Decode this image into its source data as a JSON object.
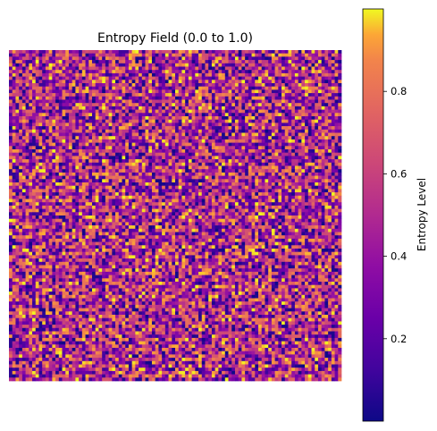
{
  "chart_data": {
    "type": "heatmap",
    "title": "Entropy Field (0.0 to 1.0)",
    "grid_rows": 100,
    "grid_cols": 100,
    "value_range": [
      0.0,
      1.0
    ],
    "colormap": "plasma",
    "axes_visible": false,
    "values_note": "",
    "colorbar": {
      "label": "Entropy Level",
      "range": [
        0.0,
        1.0
      ],
      "ticks": [
        0.2,
        0.4,
        0.6,
        0.8
      ],
      "tick_labels": [
        "0.2",
        "0.4",
        "0.6",
        "0.8"
      ],
      "placement": "right"
    }
  }
}
